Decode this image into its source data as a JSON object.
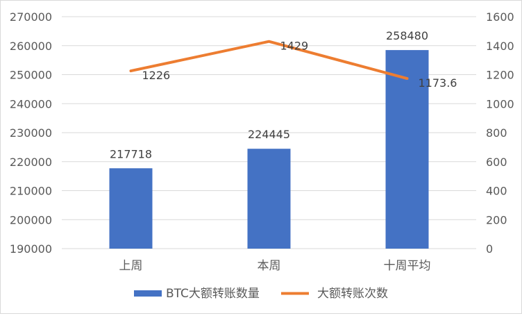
{
  "chart_data": {
    "type": "bar",
    "categories": [
      "上周",
      "本周",
      "十周平均"
    ],
    "series": [
      {
        "name": "BTC大额转账数量",
        "chart_type": "bar",
        "axis": "left",
        "values": [
          217718,
          224445,
          258480
        ],
        "labels": [
          "217718",
          "224445",
          "258480"
        ]
      },
      {
        "name": "大额转账次数",
        "chart_type": "line",
        "axis": "right",
        "values": [
          1226,
          1429,
          1173.6
        ],
        "labels": [
          "1226",
          "1429",
          "1173.6"
        ]
      }
    ],
    "y_left": {
      "min": 190000,
      "max": 270000,
      "ticks": [
        "190000",
        "200000",
        "210000",
        "220000",
        "230000",
        "240000",
        "250000",
        "260000",
        "270000"
      ]
    },
    "y_right": {
      "min": 0,
      "max": 1600,
      "ticks": [
        "0",
        "200",
        "400",
        "600",
        "800",
        "1000",
        "1200",
        "1400",
        "1600"
      ]
    },
    "grid": true,
    "legend_position": "bottom",
    "colors": {
      "bar": "#4472C4",
      "line": "#ED7D31",
      "grid": "#d9d9d9",
      "text": "#595959",
      "label": "#404040"
    }
  }
}
